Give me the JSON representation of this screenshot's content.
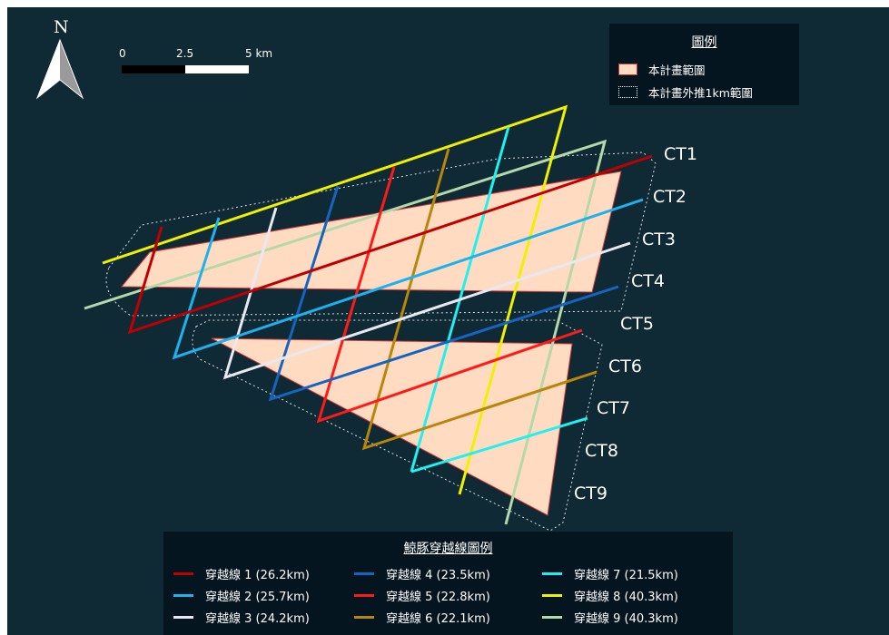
{
  "map": {
    "background_color": "#0f2935",
    "north_arrow": {
      "letter": "N"
    },
    "scale_bar": {
      "labels": [
        "0",
        "2.5",
        "5 km"
      ]
    },
    "legend": {
      "title": "圖例",
      "items": [
        {
          "label": "本計畫範圍",
          "symbol": "filled-polygon",
          "color": "#ffdcc1"
        },
        {
          "label": "本計畫外推1km範圍",
          "symbol": "dotted-outline",
          "color": "#ffffff"
        }
      ]
    },
    "project_area_color": "#ffdcc1",
    "project_area_outline": "#c0392b",
    "crossing_lines": [
      "CT1",
      "CT2",
      "CT3",
      "CT4",
      "CT5",
      "CT6",
      "CT7",
      "CT8",
      "CT9"
    ],
    "transect_legend": {
      "title": "鯨豚穿越線圖例",
      "items": [
        {
          "label": "穿越線 1 (26.2km)",
          "color": "#c00000"
        },
        {
          "label": "穿越線 2 (25.7km)",
          "color": "#1fb1ee"
        },
        {
          "label": "穿越線 3 (24.2km)",
          "color": "#e8e8f2"
        },
        {
          "label": "穿越線 4 (23.5km)",
          "color": "#1565c0"
        },
        {
          "label": "穿越線 5 (22.8km)",
          "color": "#ff1a1a"
        },
        {
          "label": "穿越線 6 (22.1km)",
          "color": "#b8860b"
        },
        {
          "label": "穿越線 7 (21.5km)",
          "color": "#20f0f0"
        },
        {
          "label": "穿越線 8 (40.3km)",
          "color": "#f0f000"
        },
        {
          "label": "穿越線 9 (40.3km)",
          "color": "#b4d8a8"
        }
      ]
    }
  }
}
